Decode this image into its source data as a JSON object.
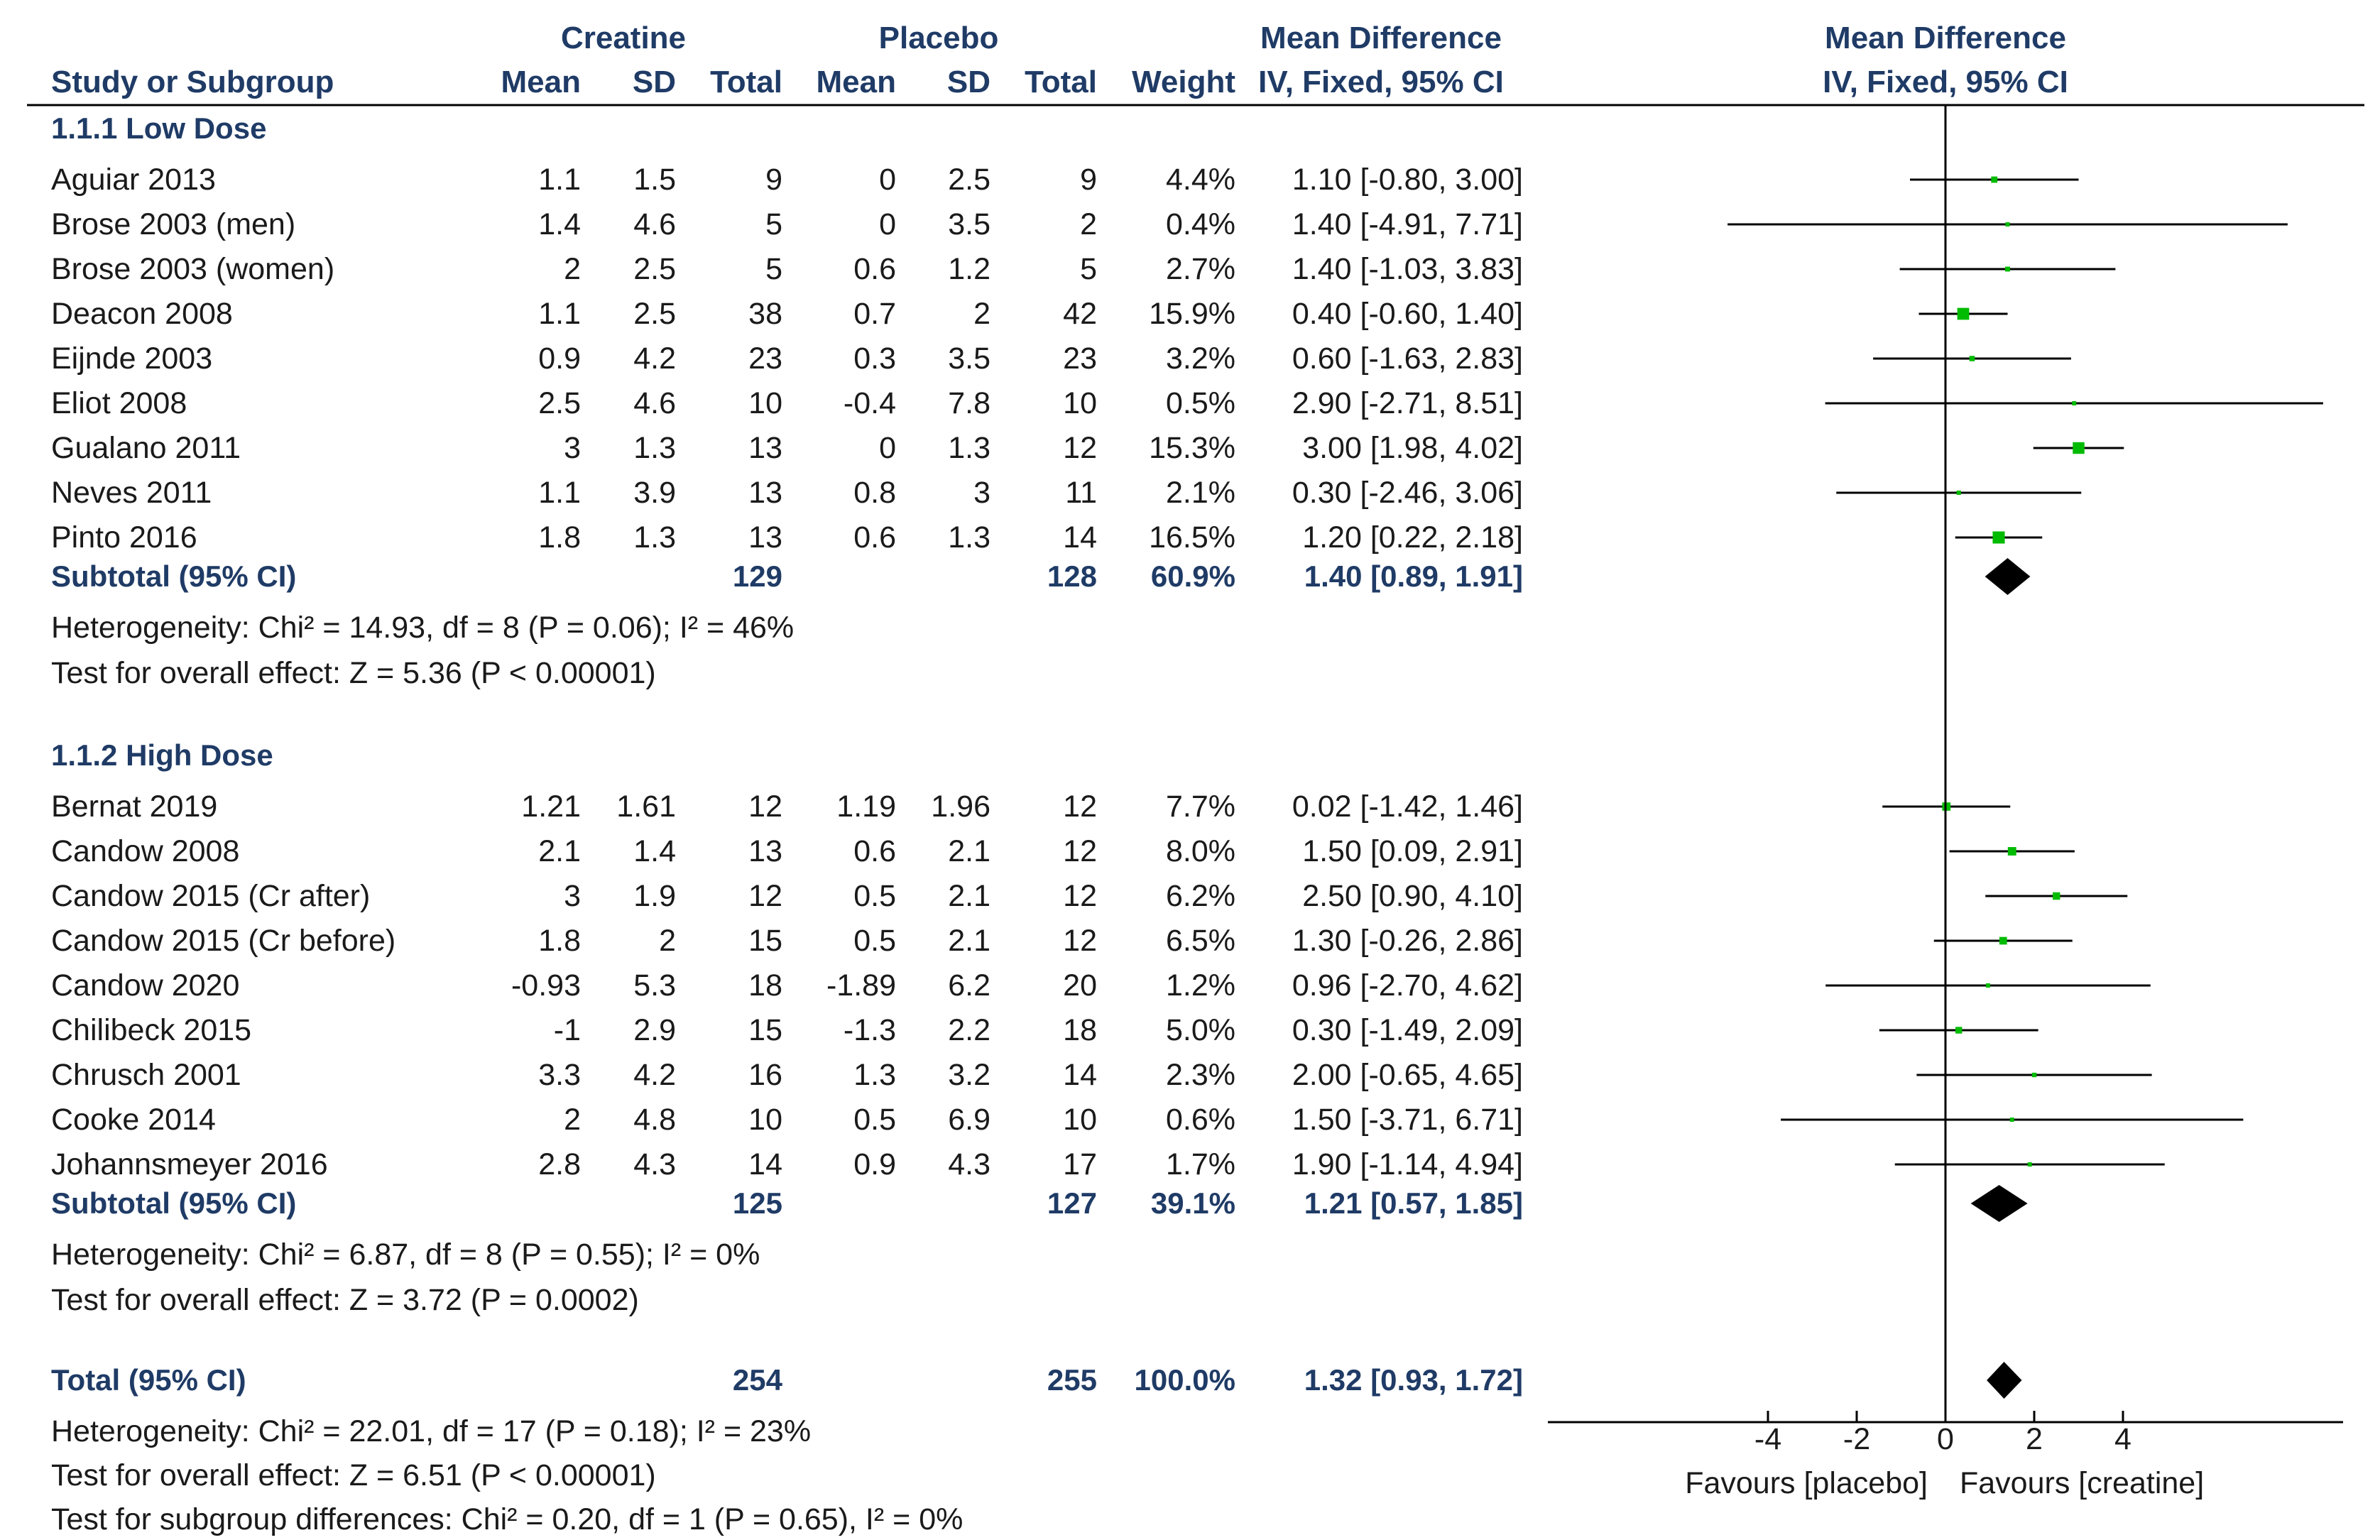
{
  "chart_data": {
    "type": "forest",
    "header": {
      "creatine": "Creatine",
      "placebo": "Placebo",
      "md": "Mean Difference",
      "md_plot": "Mean Difference",
      "study": "Study or Subgroup",
      "mean": "Mean",
      "sd": "SD",
      "total": "Total",
      "weight": "Weight",
      "method": "IV, Fixed, 95% CI",
      "method_plot": "IV, Fixed, 95% CI"
    },
    "groups": [
      {
        "title": "1.1.1 Low Dose",
        "studies": [
          {
            "name": "Aguiar 2013",
            "c_mean": "1.1",
            "c_sd": "1.5",
            "c_n": "9",
            "p_mean": "0",
            "p_sd": "2.5",
            "p_n": "9",
            "weight": "4.4%",
            "ci_text": "1.10 [-0.80, 3.00]",
            "md": 1.1,
            "lo": -0.8,
            "hi": 3.0,
            "w": 4.4
          },
          {
            "name": "Brose 2003 (men)",
            "c_mean": "1.4",
            "c_sd": "4.6",
            "c_n": "5",
            "p_mean": "0",
            "p_sd": "3.5",
            "p_n": "2",
            "weight": "0.4%",
            "ci_text": "1.40 [-4.91, 7.71]",
            "md": 1.4,
            "lo": -4.91,
            "hi": 7.71,
            "w": 0.4
          },
          {
            "name": "Brose 2003 (women)",
            "c_mean": "2",
            "c_sd": "2.5",
            "c_n": "5",
            "p_mean": "0.6",
            "p_sd": "1.2",
            "p_n": "5",
            "weight": "2.7%",
            "ci_text": "1.40 [-1.03, 3.83]",
            "md": 1.4,
            "lo": -1.03,
            "hi": 3.83,
            "w": 2.7
          },
          {
            "name": "Deacon 2008",
            "c_mean": "1.1",
            "c_sd": "2.5",
            "c_n": "38",
            "p_mean": "0.7",
            "p_sd": "2",
            "p_n": "42",
            "weight": "15.9%",
            "ci_text": "0.40 [-0.60, 1.40]",
            "md": 0.4,
            "lo": -0.6,
            "hi": 1.4,
            "w": 15.9
          },
          {
            "name": "Eijnde 2003",
            "c_mean": "0.9",
            "c_sd": "4.2",
            "c_n": "23",
            "p_mean": "0.3",
            "p_sd": "3.5",
            "p_n": "23",
            "weight": "3.2%",
            "ci_text": "0.60 [-1.63, 2.83]",
            "md": 0.6,
            "lo": -1.63,
            "hi": 2.83,
            "w": 3.2
          },
          {
            "name": "Eliot 2008",
            "c_mean": "2.5",
            "c_sd": "4.6",
            "c_n": "10",
            "p_mean": "-0.4",
            "p_sd": "7.8",
            "p_n": "10",
            "weight": "0.5%",
            "ci_text": "2.90 [-2.71, 8.51]",
            "md": 2.9,
            "lo": -2.71,
            "hi": 8.51,
            "w": 0.5
          },
          {
            "name": "Gualano 2011",
            "c_mean": "3",
            "c_sd": "1.3",
            "c_n": "13",
            "p_mean": "0",
            "p_sd": "1.3",
            "p_n": "12",
            "weight": "15.3%",
            "ci_text": "3.00 [1.98, 4.02]",
            "md": 3.0,
            "lo": 1.98,
            "hi": 4.02,
            "w": 15.3
          },
          {
            "name": "Neves 2011",
            "c_mean": "1.1",
            "c_sd": "3.9",
            "c_n": "13",
            "p_mean": "0.8",
            "p_sd": "3",
            "p_n": "11",
            "weight": "2.1%",
            "ci_text": "0.30 [-2.46, 3.06]",
            "md": 0.3,
            "lo": -2.46,
            "hi": 3.06,
            "w": 2.1
          },
          {
            "name": "Pinto 2016",
            "c_mean": "1.8",
            "c_sd": "1.3",
            "c_n": "13",
            "p_mean": "0.6",
            "p_sd": "1.3",
            "p_n": "14",
            "weight": "16.5%",
            "ci_text": "1.20 [0.22, 2.18]",
            "md": 1.2,
            "lo": 0.22,
            "hi": 2.18,
            "w": 16.5
          }
        ],
        "subtotal": {
          "label": "Subtotal (95% CI)",
          "c_n": "129",
          "p_n": "128",
          "weight": "60.9%",
          "ci_text": "1.40 [0.89, 1.91]",
          "md": 1.4,
          "lo": 0.89,
          "hi": 1.91
        },
        "heterogeneity": "Heterogeneity: Chi² = 14.93, df = 8 (P = 0.06); I² = 46%",
        "overall": "Test for overall effect: Z = 5.36 (P < 0.00001)"
      },
      {
        "title": "1.1.2 High Dose",
        "studies": [
          {
            "name": "Bernat 2019",
            "c_mean": "1.21",
            "c_sd": "1.61",
            "c_n": "12",
            "p_mean": "1.19",
            "p_sd": "1.96",
            "p_n": "12",
            "weight": "7.7%",
            "ci_text": "0.02 [-1.42, 1.46]",
            "md": 0.02,
            "lo": -1.42,
            "hi": 1.46,
            "w": 7.7
          },
          {
            "name": "Candow 2008",
            "c_mean": "2.1",
            "c_sd": "1.4",
            "c_n": "13",
            "p_mean": "0.6",
            "p_sd": "2.1",
            "p_n": "12",
            "weight": "8.0%",
            "ci_text": "1.50 [0.09, 2.91]",
            "md": 1.5,
            "lo": 0.09,
            "hi": 2.91,
            "w": 8.0
          },
          {
            "name": "Candow 2015 (Cr after)",
            "c_mean": "3",
            "c_sd": "1.9",
            "c_n": "12",
            "p_mean": "0.5",
            "p_sd": "2.1",
            "p_n": "12",
            "weight": "6.2%",
            "ci_text": "2.50 [0.90, 4.10]",
            "md": 2.5,
            "lo": 0.9,
            "hi": 4.1,
            "w": 6.2
          },
          {
            "name": "Candow 2015 (Cr before)",
            "c_mean": "1.8",
            "c_sd": "2",
            "c_n": "15",
            "p_mean": "0.5",
            "p_sd": "2.1",
            "p_n": "12",
            "weight": "6.5%",
            "ci_text": "1.30 [-0.26, 2.86]",
            "md": 1.3,
            "lo": -0.26,
            "hi": 2.86,
            "w": 6.5
          },
          {
            "name": "Candow 2020",
            "c_mean": "-0.93",
            "c_sd": "5.3",
            "c_n": "18",
            "p_mean": "-1.89",
            "p_sd": "6.2",
            "p_n": "20",
            "weight": "1.2%",
            "ci_text": "0.96 [-2.70, 4.62]",
            "md": 0.96,
            "lo": -2.7,
            "hi": 4.62,
            "w": 1.2
          },
          {
            "name": "Chilibeck 2015",
            "c_mean": "-1",
            "c_sd": "2.9",
            "c_n": "15",
            "p_mean": "-1.3",
            "p_sd": "2.2",
            "p_n": "18",
            "weight": "5.0%",
            "ci_text": "0.30 [-1.49, 2.09]",
            "md": 0.3,
            "lo": -1.49,
            "hi": 2.09,
            "w": 5.0
          },
          {
            "name": "Chrusch 2001",
            "c_mean": "3.3",
            "c_sd": "4.2",
            "c_n": "16",
            "p_mean": "1.3",
            "p_sd": "3.2",
            "p_n": "14",
            "weight": "2.3%",
            "ci_text": "2.00 [-0.65, 4.65]",
            "md": 2.0,
            "lo": -0.65,
            "hi": 4.65,
            "w": 2.3
          },
          {
            "name": "Cooke 2014",
            "c_mean": "2",
            "c_sd": "4.8",
            "c_n": "10",
            "p_mean": "0.5",
            "p_sd": "6.9",
            "p_n": "10",
            "weight": "0.6%",
            "ci_text": "1.50 [-3.71, 6.71]",
            "md": 1.5,
            "lo": -3.71,
            "hi": 6.71,
            "w": 0.6
          },
          {
            "name": "Johannsmeyer 2016",
            "c_mean": "2.8",
            "c_sd": "4.3",
            "c_n": "14",
            "p_mean": "0.9",
            "p_sd": "4.3",
            "p_n": "17",
            "weight": "1.7%",
            "ci_text": "1.90 [-1.14, 4.94]",
            "md": 1.9,
            "lo": -1.14,
            "hi": 4.94,
            "w": 1.7
          }
        ],
        "subtotal": {
          "label": "Subtotal (95% CI)",
          "c_n": "125",
          "p_n": "127",
          "weight": "39.1%",
          "ci_text": "1.21 [0.57, 1.85]",
          "md": 1.21,
          "lo": 0.57,
          "hi": 1.85
        },
        "heterogeneity": "Heterogeneity: Chi² = 6.87, df = 8 (P = 0.55); I² = 0%",
        "overall": "Test for overall effect: Z = 3.72 (P = 0.0002)"
      }
    ],
    "total": {
      "label": "Total (95% CI)",
      "c_n": "254",
      "p_n": "255",
      "weight": "100.0%",
      "ci_text": "1.32 [0.93, 1.72]",
      "md": 1.32,
      "lo": 0.93,
      "hi": 1.72
    },
    "footer": [
      "Heterogeneity: Chi² = 22.01, df = 17 (P = 0.18); I² = 23%",
      "Test for overall effect: Z = 6.51 (P < 0.00001)",
      "Test for subgroup differences: Chi² = 0.20, df = 1 (P = 0.65), I² = 0%"
    ],
    "axis": {
      "ticks": [
        -4,
        -2,
        0,
        2,
        4
      ],
      "tick_labels": [
        "-4",
        "-2",
        "0",
        "2",
        "4"
      ],
      "xlim": [
        -9,
        9
      ],
      "favours_left": "Favours [placebo]",
      "favours_right": "Favours [creatine]"
    },
    "colors": {
      "header": "#1f3b66",
      "marker": "#00bb00",
      "diamond": "#000000",
      "text": "#1a1a1a",
      "line": "#000000"
    }
  }
}
